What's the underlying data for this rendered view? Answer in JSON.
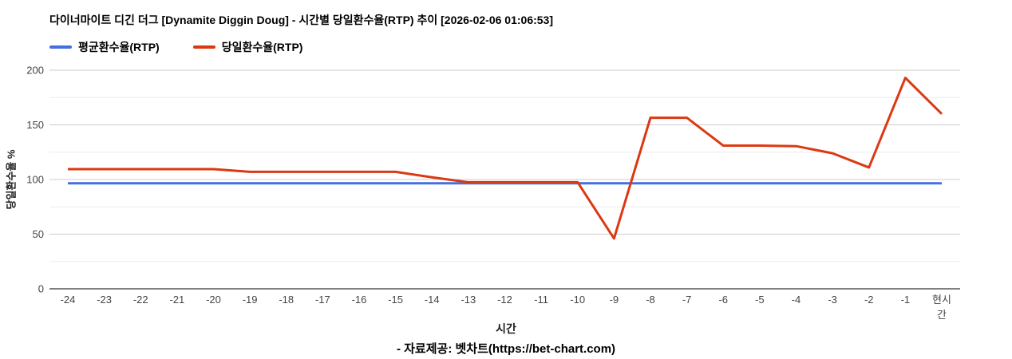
{
  "title": "다이너마이트 디긴 더그 [Dynamite Diggin Doug] - 시간별 당일환수율(RTP) 추이 [2026-02-06 01:06:53]",
  "footer": "- 자료제공: 벳차트(https://bet-chart.com)",
  "chart_data": {
    "type": "line",
    "title": "다이너마이트 디긴 더그 [Dynamite Diggin Doug] - 시간별 당일환수율(RTP) 추이 [2026-02-06 01:06:53]",
    "xlabel": "시간",
    "ylabel": "당일환수율 %",
    "ylim": [
      0,
      200
    ],
    "y_major_ticks": [
      0,
      50,
      100,
      150,
      200
    ],
    "y_minor_gridlines": [
      25,
      75,
      125,
      175
    ],
    "grid": true,
    "legend_position": "top-left",
    "categories": [
      "-24",
      "-23",
      "-22",
      "-21",
      "-20",
      "-19",
      "-18",
      "-17",
      "-16",
      "-15",
      "-14",
      "-13",
      "-12",
      "-11",
      "-10",
      "-9",
      "-8",
      "-7",
      "-6",
      "-5",
      "-4",
      "-3",
      "-2",
      "-1",
      "현시간"
    ],
    "last_label_lines": [
      "현시",
      "간"
    ],
    "series": [
      {
        "name": "평균환수율(RTP)",
        "color": "#4270e0",
        "values": [
          96.5,
          96.5,
          96.5,
          96.5,
          96.5,
          96.5,
          96.5,
          96.5,
          96.5,
          96.5,
          96.5,
          96.5,
          96.5,
          96.5,
          96.5,
          96.5,
          96.5,
          96.5,
          96.5,
          96.5,
          96.5,
          96.5,
          96.5,
          96.5,
          96.5
        ]
      },
      {
        "name": "당일환수율(RTP)",
        "color": "#dc3912",
        "values": [
          109.5,
          109.5,
          109.5,
          109.5,
          109.5,
          107,
          107,
          107,
          107,
          107,
          102,
          97.5,
          97.5,
          97.5,
          97.5,
          46,
          156.5,
          156.5,
          131,
          131,
          130.5,
          124,
          111,
          193,
          160
        ]
      }
    ],
    "styles": {
      "grid_major_color": "#cccccc",
      "grid_minor_color": "#ebebeb",
      "baseline_color": "#333333",
      "tick_label_color": "#444444"
    }
  }
}
